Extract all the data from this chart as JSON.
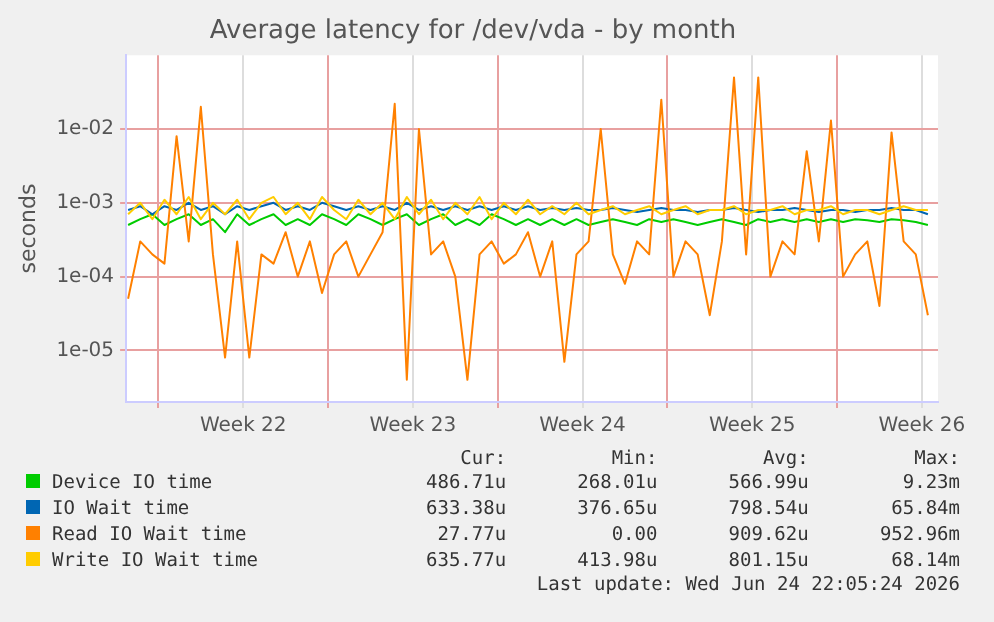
{
  "chart_data": {
    "type": "line",
    "title": "Average latency for /dev/vda - by month",
    "ylabel": "seconds",
    "log": "y",
    "grid": true,
    "legend": "bottom",
    "marker": "none",
    "line_style": "solid",
    "xlim": [
      "2026-05-23T16:00",
      "2026-06-26T04:00"
    ],
    "xticks": [
      {
        "value": "2026-05-25",
        "label": null
      },
      {
        "value": "2026-05-28T12:00",
        "label": "Week 22"
      },
      {
        "value": "2026-06-01",
        "label": null
      },
      {
        "value": "2026-06-04T12:00",
        "label": "Week 23"
      },
      {
        "value": "2026-06-08",
        "label": null
      },
      {
        "value": "2026-06-11T12:00",
        "label": "Week 24"
      },
      {
        "value": "2026-06-15",
        "label": null
      },
      {
        "value": "2026-06-18T12:00",
        "label": "Week 25"
      },
      {
        "value": "2026-06-22",
        "label": null
      },
      {
        "value": "2026-06-25T12:00",
        "label": "Week 26"
      }
    ],
    "ylim": [
      2e-06,
      0.1
    ],
    "yticks": [
      {
        "value": 1e-05,
        "label": "1e-05"
      },
      {
        "value": 0.0001,
        "label": "1e-04"
      },
      {
        "value": 0.001,
        "label": "1e-03"
      },
      {
        "value": 0.01,
        "label": "1e-02"
      }
    ],
    "x": [
      "2026-05-23T18:00",
      "2026-05-24T06:00",
      "2026-05-24T18:00",
      "2026-05-25T06:00",
      "2026-05-25T18:00",
      "2026-05-26T06:00",
      "2026-05-26T18:00",
      "2026-05-27T06:00",
      "2026-05-27T18:00",
      "2026-05-28T06:00",
      "2026-05-28T18:00",
      "2026-05-29T06:00",
      "2026-05-29T18:00",
      "2026-05-30T06:00",
      "2026-05-30T18:00",
      "2026-05-31T06:00",
      "2026-05-31T18:00",
      "2026-06-01T06:00",
      "2026-06-01T18:00",
      "2026-06-02T06:00",
      "2026-06-02T18:00",
      "2026-06-03T06:00",
      "2026-06-03T18:00",
      "2026-06-04T06:00",
      "2026-06-04T18:00",
      "2026-06-05T06:00",
      "2026-06-05T18:00",
      "2026-06-06T06:00",
      "2026-06-06T18:00",
      "2026-06-07T06:00",
      "2026-06-07T18:00",
      "2026-06-08T06:00",
      "2026-06-08T18:00",
      "2026-06-09T06:00",
      "2026-06-09T18:00",
      "2026-06-10T06:00",
      "2026-06-10T18:00",
      "2026-06-11T06:00",
      "2026-06-11T18:00",
      "2026-06-12T06:00",
      "2026-06-12T18:00",
      "2026-06-13T06:00",
      "2026-06-13T18:00",
      "2026-06-14T06:00",
      "2026-06-14T18:00",
      "2026-06-15T06:00",
      "2026-06-15T18:00",
      "2026-06-16T06:00",
      "2026-06-16T18:00",
      "2026-06-17T06:00",
      "2026-06-17T18:00",
      "2026-06-18T06:00",
      "2026-06-18T18:00",
      "2026-06-19T06:00",
      "2026-06-19T18:00",
      "2026-06-20T06:00",
      "2026-06-20T18:00",
      "2026-06-21T06:00",
      "2026-06-21T18:00",
      "2026-06-22T06:00",
      "2026-06-22T18:00",
      "2026-06-23T06:00",
      "2026-06-23T18:00",
      "2026-06-24T06:00",
      "2026-06-24T18:00",
      "2026-06-25T06:00",
      "2026-06-25T18:00"
    ],
    "series": [
      {
        "name": "Device IO time",
        "color": "#00cc00",
        "values": [
          0.0005,
          0.0006,
          0.0007,
          0.0005,
          0.0006,
          0.0007,
          0.0005,
          0.0006,
          0.0004,
          0.0007,
          0.0005,
          0.0006,
          0.0007,
          0.0005,
          0.0006,
          0.0005,
          0.0007,
          0.0006,
          0.0005,
          0.0007,
          0.0006,
          0.0005,
          0.0006,
          0.0007,
          0.0005,
          0.0006,
          0.0007,
          0.0005,
          0.0006,
          0.0005,
          0.0007,
          0.0006,
          0.0005,
          0.0006,
          0.0005,
          0.0006,
          0.0005,
          0.0006,
          0.0005,
          0.00055,
          0.0006,
          0.00055,
          0.0005,
          0.0006,
          0.00055,
          0.0006,
          0.00055,
          0.0005,
          0.00055,
          0.0006,
          0.00055,
          0.0005,
          0.0006,
          0.00055,
          0.0006,
          0.00055,
          0.0006,
          0.00055,
          0.0006,
          0.00055,
          0.0006,
          0.00058,
          0.00055,
          0.0006,
          0.00058,
          0.00055,
          0.0005
        ]
      },
      {
        "name": "IO Wait time",
        "color": "#0066b3",
        "values": [
          0.0008,
          0.0009,
          0.0007,
          0.0009,
          0.0008,
          0.001,
          0.0008,
          0.0009,
          0.0007,
          0.0009,
          0.0008,
          0.0009,
          0.001,
          0.0008,
          0.0009,
          0.0008,
          0.001,
          0.0009,
          0.0008,
          0.0009,
          0.0008,
          0.0009,
          0.0008,
          0.001,
          0.0008,
          0.0009,
          0.0008,
          0.0009,
          0.0008,
          0.0009,
          0.0008,
          0.0009,
          0.0008,
          0.0009,
          0.0008,
          0.00085,
          0.0008,
          0.00085,
          0.0008,
          0.0008,
          0.00085,
          0.0008,
          0.00075,
          0.0008,
          0.00085,
          0.0008,
          0.0008,
          0.00075,
          0.0008,
          0.0008,
          0.00085,
          0.0008,
          0.00075,
          0.0008,
          0.0008,
          0.00085,
          0.0008,
          0.00075,
          0.0008,
          0.0008,
          0.00075,
          0.0008,
          0.0008,
          0.00085,
          0.0008,
          0.0008,
          0.0007
        ]
      },
      {
        "name": "Read IO Wait time",
        "color": "#ff8000",
        "values": [
          5e-05,
          0.0003,
          0.0002,
          0.00015,
          0.008,
          0.0003,
          0.02,
          0.0002,
          8e-06,
          0.0003,
          8e-06,
          0.0002,
          0.00015,
          0.0004,
          0.0001,
          0.0003,
          6e-05,
          0.0002,
          0.0003,
          0.0001,
          0.0002,
          0.0004,
          0.022,
          4e-06,
          0.01,
          0.0002,
          0.0003,
          0.0001,
          4e-06,
          0.0002,
          0.0003,
          0.00015,
          0.0002,
          0.0004,
          0.0001,
          0.0003,
          7e-06,
          0.0002,
          0.0003,
          0.01,
          0.0002,
          8e-05,
          0.0003,
          0.0002,
          0.025,
          0.0001,
          0.0003,
          0.0002,
          3e-05,
          0.0003,
          0.05,
          0.0002,
          0.05,
          0.0001,
          0.0003,
          0.0002,
          0.005,
          0.0003,
          0.013,
          0.0001,
          0.0002,
          0.0003,
          4e-05,
          0.009,
          0.0003,
          0.0002,
          3e-05
        ]
      },
      {
        "name": "Write IO Wait time",
        "color": "#ffcc00",
        "values": [
          0.0007,
          0.001,
          0.0006,
          0.0011,
          0.0007,
          0.0012,
          0.0006,
          0.001,
          0.0007,
          0.0011,
          0.0006,
          0.001,
          0.0012,
          0.0007,
          0.001,
          0.0006,
          0.0012,
          0.0008,
          0.0006,
          0.0011,
          0.0007,
          0.001,
          0.0006,
          0.0012,
          0.0007,
          0.0011,
          0.0006,
          0.001,
          0.0007,
          0.0012,
          0.0006,
          0.001,
          0.0007,
          0.0011,
          0.0007,
          0.0009,
          0.0007,
          0.001,
          0.0007,
          0.0008,
          0.0009,
          0.0007,
          0.0008,
          0.0009,
          0.0007,
          0.0008,
          0.0009,
          0.0007,
          0.0008,
          0.0008,
          0.0009,
          0.0007,
          0.0008,
          0.0008,
          0.0009,
          0.0007,
          0.0008,
          0.0008,
          0.0009,
          0.0007,
          0.0008,
          0.0008,
          0.0007,
          0.0008,
          0.0009,
          0.0008,
          0.0008
        ]
      }
    ],
    "annotations": [
      "Cur:",
      "Min:",
      "Avg:",
      "Max:",
      "486.71u",
      "268.01u",
      "566.99u",
      "9.23m",
      "633.38u",
      "376.65u",
      "798.54u",
      "65.84m",
      "27.77u",
      "0.00",
      "909.62u",
      "952.96m",
      "635.77u",
      "413.98u",
      "801.15u",
      "68.14m",
      "Last update: Wed Jun 24 22:05:24 2026"
    ]
  }
}
